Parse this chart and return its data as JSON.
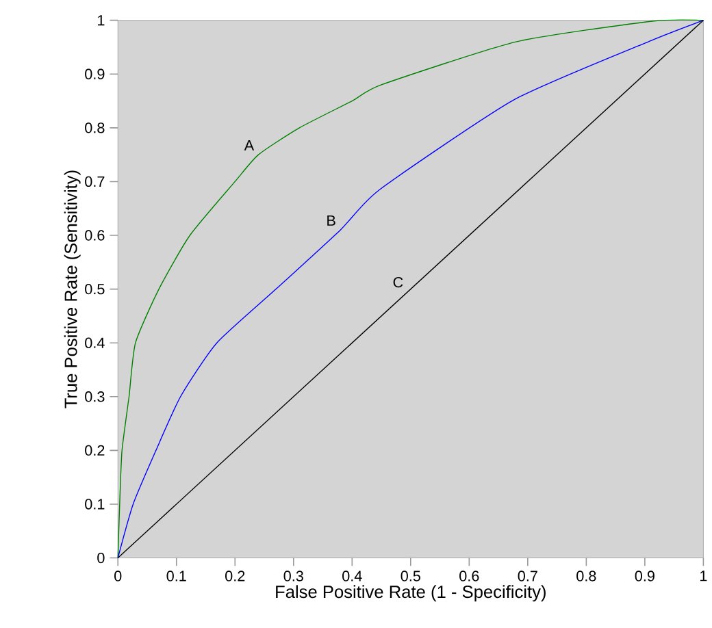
{
  "chart_data": {
    "type": "line",
    "xlabel": "False Positive Rate (1 - Specificity)",
    "ylabel": "True Positive Rate (Sensitivity)",
    "xlim": [
      0,
      1
    ],
    "ylim": [
      0,
      1
    ],
    "xticks": [
      0,
      0.1,
      0.2,
      0.3,
      0.4,
      0.5,
      0.6,
      0.7,
      0.8,
      0.9,
      1
    ],
    "yticks": [
      0,
      0.1,
      0.2,
      0.3,
      0.4,
      0.5,
      0.6,
      0.7,
      0.8,
      0.9,
      1
    ],
    "grid": false,
    "legend": false,
    "marker": "none",
    "line_style": "solid",
    "series": [
      {
        "name": "A",
        "color": "#008000",
        "x": [
          0,
          0.003,
          0.007,
          0.019,
          0.03,
          0.07,
          0.123,
          0.2,
          0.24,
          0.31,
          0.4,
          0.45,
          0.68,
          0.91,
          1
        ],
        "values": [
          0,
          0.1,
          0.2,
          0.3,
          0.4,
          0.5,
          0.6,
          0.7,
          0.75,
          0.8,
          0.85,
          0.88,
          0.96,
          0.998,
          1
        ]
      },
      {
        "name": "B",
        "color": "#0000ff",
        "x": [
          0,
          0.026,
          0.065,
          0.107,
          0.169,
          0.27,
          0.38,
          0.447,
          0.678,
          0.91,
          1
        ],
        "values": [
          0,
          0.1,
          0.2,
          0.3,
          0.4,
          0.5,
          0.61,
          0.685,
          0.853,
          0.962,
          1
        ]
      },
      {
        "name": "C",
        "color": "#000000",
        "x": [
          0,
          1
        ],
        "values": [
          0,
          1
        ]
      }
    ]
  }
}
